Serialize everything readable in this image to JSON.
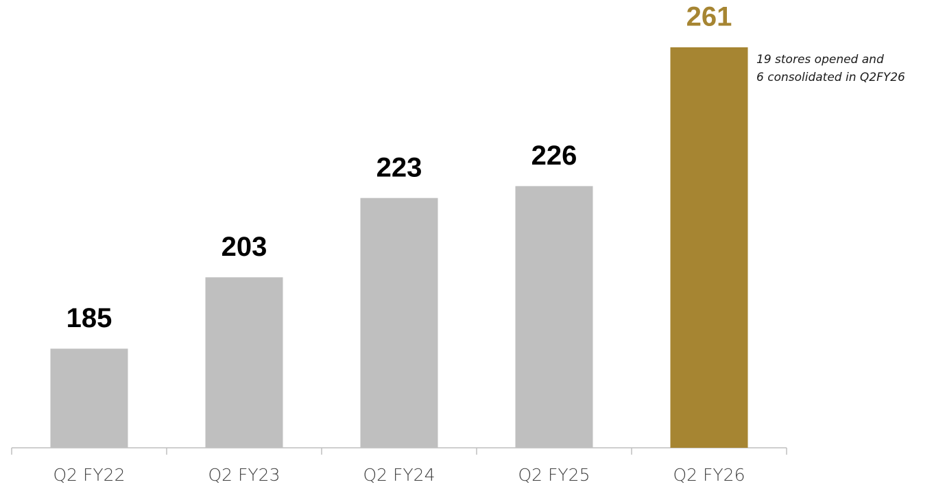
{
  "chart_data": {
    "type": "bar",
    "categories": [
      "Q2 FY22",
      "Q2 FY23",
      "Q2 FY24",
      "Q2 FY25",
      "Q2 FY26"
    ],
    "values": [
      185,
      203,
      223,
      226,
      261
    ],
    "colors": [
      "#bfbfbf",
      "#bfbfbf",
      "#bfbfbf",
      "#bfbfbf",
      "#a68532"
    ],
    "value_label_colors": [
      "#000000",
      "#000000",
      "#000000",
      "#000000",
      "#a68532"
    ],
    "ylim": [
      160,
      261
    ],
    "annotation": [
      "19 stores opened and",
      "6 consolidated in Q2FY26"
    ]
  }
}
